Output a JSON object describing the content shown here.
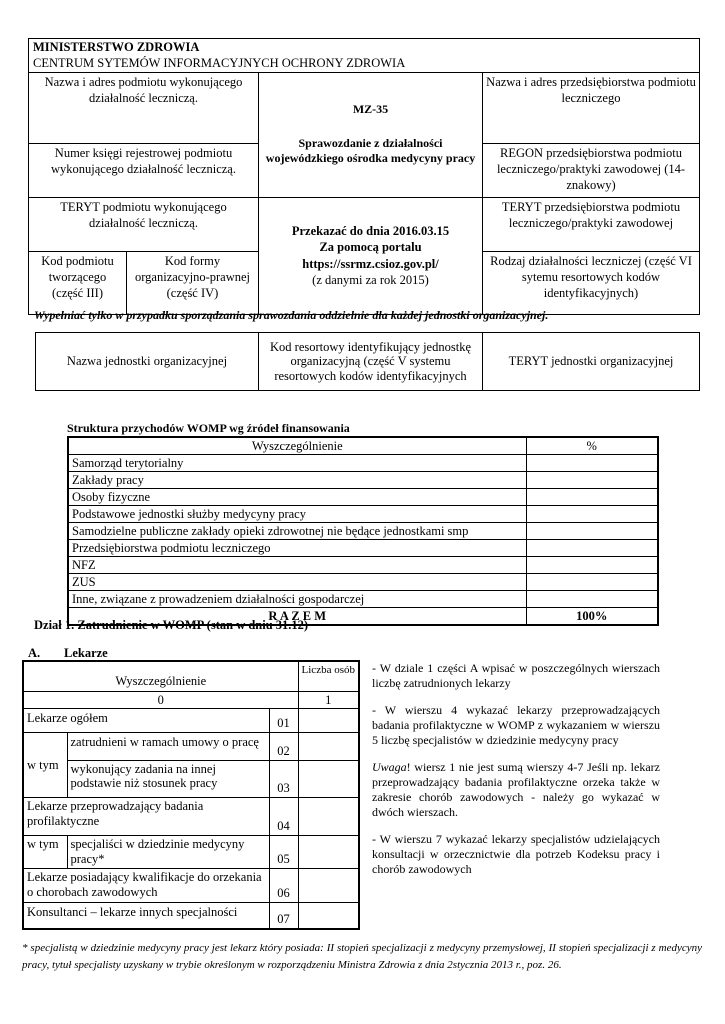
{
  "header": {
    "ministry": "MINISTERSTWO ZDROWIA",
    "center": "CENTRUM SYTEMÓW INFORMACYJNYCH OCHRONY ZDROWIA",
    "left": [
      "Nazwa i adres podmiotu wykonującego działalność leczniczą.",
      "Numer księgi rejestrowej podmiotu wykonującego działalność leczniczą.",
      "TERYT podmiotu wykonującego działalność leczniczą."
    ],
    "kod_podmiotu": "Kod podmiotu tworzącego (część III)",
    "kod_formy": "Kod formy organizacyjno-prawnej (część IV)",
    "form_code": "MZ-35",
    "form_title": "Sprawozdanie z działalności wojewódzkiego ośrodka medycyny pracy",
    "deadline": "Przekazać do dnia 2016.03.15",
    "portal": "Za pomocą portalu",
    "url": "https://ssrmz.csioz.gov.pl/",
    "year_note": "(z danymi za rok 2015)",
    "right": [
      "Nazwa i adres przedsiębiorstwa podmiotu leczniczego",
      "REGON przedsiębiorstwa podmiotu leczniczego/praktyki zawodowej (14-znakowy)",
      "TERYT przedsiębiorstwa podmiotu leczniczego/praktyki zawodowej",
      "Rodzaj działalności leczniczej (część VI sytemu resortowych kodów identyfikacyjnych)"
    ]
  },
  "unit_note": "Wypełniać tylko w przypadku sporządzania sprawozdania oddzielnie dla każdej jednostki organizacyjnej.",
  "unit": [
    "Nazwa jednostki organizacyjnej",
    "Kod resortowy identyfikujący jednostkę organizacyjną (część V systemu resortowych kodów identyfikacyjnych",
    "TERYT jednostki organizacyjnej"
  ],
  "struktura": {
    "title": "Struktura przychodów  WOMP wg źródeł finansowania",
    "col1": "Wyszczególnienie",
    "col2": "%",
    "rows": [
      "Samorząd terytorialny",
      "Zakłady pracy",
      "Osoby fizyczne",
      "Podstawowe jednostki służby medycyny pracy",
      "Samodzielne publiczne zakłady opieki zdrowotnej nie będące jednostkami smp",
      "Przedsiębiorstwa podmiotu leczniczego",
      "NFZ",
      "ZUS",
      "Inne, związane z prowadzeniem działalności   gospodarczej"
    ],
    "total_label": "R A Z E M",
    "total_value": "100%"
  },
  "dzial": "Dział 1. Zatrudnienie w WOMP (stan w dniu  31.12)",
  "sectionA": {
    "letter": "A.",
    "title": "Lekarze"
  },
  "lekarze": {
    "col1": "Wyszczególnienie",
    "col2": "Liczba osób",
    "idx0": "0",
    "idx1": "1",
    "wtym": "w tym",
    "rows": [
      {
        "label": "Lekarze ogółem",
        "code": "01"
      },
      {
        "label": "zatrudnieni w ramach umowy o pracę",
        "code": "02"
      },
      {
        "label": "wykonujący zadania na innej podstawie niż stosunek pracy",
        "code": "03"
      },
      {
        "label": "Lekarze przeprowadzający badania profilaktyczne",
        "code": "04"
      },
      {
        "label": "specjaliści w dziedzinie medycyny pracy*",
        "code": "05"
      },
      {
        "label": "Lekarze posiadający kwalifikacje do orzekania o chorobach  zawodowych",
        "code": "06"
      },
      {
        "label": "Konsultanci – lekarze innych specjalności",
        "code": "07"
      }
    ]
  },
  "notes": {
    "n1": "- W dziale 1 części A wpisać w poszczególnych wierszach liczbę zatrudnionych lekarzy",
    "n2": "- W wierszu 4 wykazać lekarzy przeprowadzających badania profilaktyczne w WOMP z wykazaniem w wierszu 5 liczbę specjalistów w dziedzinie medycyny pracy",
    "n3_em": "Uwaga",
    "n3": "! wiersz 1 nie jest sumą wierszy 4-7 Jeśli np. lekarz przeprowadzający badania profilaktyczne orzeka także w zakresie chorób zawodowych - należy go wykazać w dwóch wierszach.",
    "n4": "- W wierszu 7 wykazać lekarzy specjalistów udzielających konsultacji w orzecznictwie dla potrzeb Kodeksu pracy i chorób zawodowych"
  },
  "footnote": "* specjalistą w dziedzinie medycyny pracy jest lekarz który posiada: II stopień  specjalizacji z medycyny przemysłowej, II stopień specjalizacji z medycyny pracy, tytuł specjalisty uzyskany w trybie określonym w rozporządzeniu Ministra Zdrowia z dnia 2stycznia    2013 r., poz. 26."
}
